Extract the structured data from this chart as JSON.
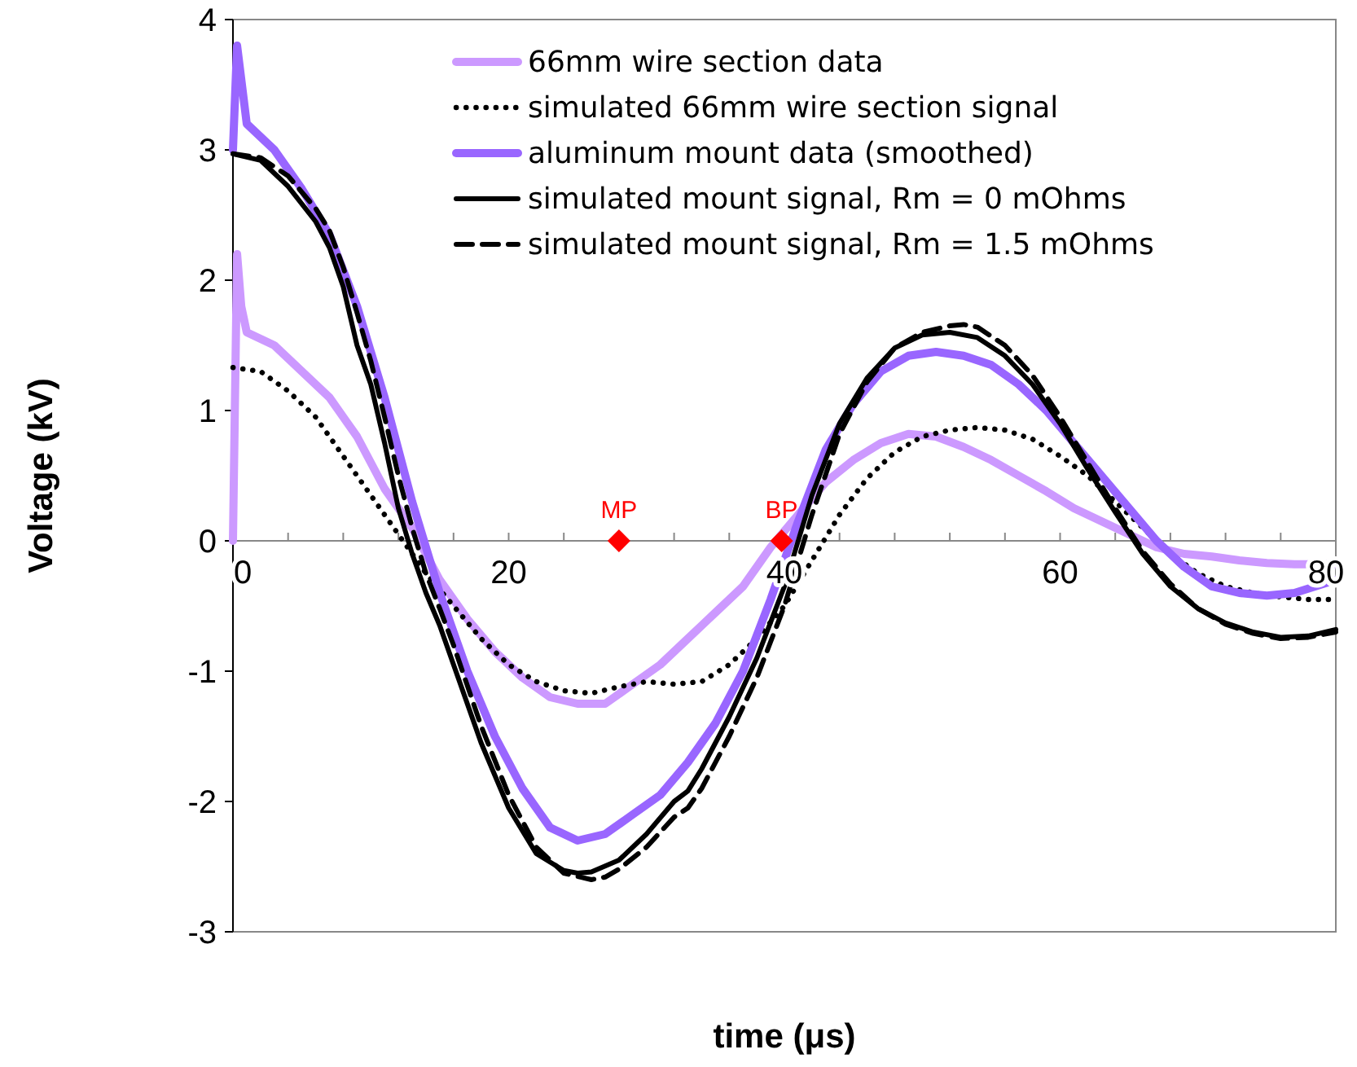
{
  "chart_data": {
    "type": "line",
    "xlabel": "time (μs)",
    "ylabel": "Voltage (kV)",
    "xlim": [
      0,
      80
    ],
    "ylim": [
      -3,
      4
    ],
    "xticks": [
      0,
      {
        "value": 4,
        "label": null
      },
      {
        "value": 8,
        "label": null
      },
      {
        "value": 12,
        "label": null
      },
      {
        "value": 16,
        "label": null
      },
      20,
      {
        "value": 24,
        "label": null
      },
      {
        "value": 28,
        "label": null
      },
      {
        "value": 32,
        "label": null
      },
      {
        "value": 36,
        "label": null
      },
      40,
      {
        "value": 44,
        "label": null
      },
      {
        "value": 48,
        "label": null
      },
      {
        "value": 52,
        "label": null
      },
      {
        "value": 56,
        "label": null
      },
      60,
      {
        "value": 64,
        "label": null
      },
      {
        "value": 68,
        "label": null
      },
      {
        "value": 72,
        "label": null
      },
      {
        "value": 76,
        "label": null
      },
      80
    ],
    "yticks": [
      -3,
      -2,
      -1,
      0,
      1,
      2,
      3,
      4
    ],
    "grid": false,
    "legend": "top right",
    "marker": "none",
    "series": [
      {
        "name": "66mm wire section data",
        "color": "#cc99ff",
        "line_style": "solid",
        "x": [
          0,
          0.3,
          0.6,
          1,
          3,
          5,
          7,
          9,
          11,
          13,
          15,
          17,
          19,
          21,
          23,
          25,
          27,
          29,
          31,
          33,
          35,
          37,
          39,
          41,
          43,
          45,
          47,
          49,
          51,
          53,
          55,
          57,
          59,
          61,
          63,
          65,
          67,
          69,
          71,
          73,
          75,
          77,
          80
        ],
        "values": [
          0,
          2.2,
          1.8,
          1.6,
          1.5,
          1.3,
          1.1,
          0.8,
          0.4,
          0.1,
          -0.3,
          -0.6,
          -0.85,
          -1.05,
          -1.2,
          -1.25,
          -1.25,
          -1.1,
          -0.95,
          -0.75,
          -0.55,
          -0.35,
          -0.05,
          0.2,
          0.45,
          0.62,
          0.75,
          0.82,
          0.8,
          0.72,
          0.62,
          0.5,
          0.38,
          0.25,
          0.15,
          0.05,
          -0.05,
          -0.1,
          -0.12,
          -0.15,
          -0.17,
          -0.18,
          -0.18
        ]
      },
      {
        "name": "simulated 66mm wire section signal",
        "color": "#000000",
        "line_style": "dotted",
        "x": [
          0,
          2,
          4,
          6,
          8,
          10,
          12,
          14,
          16,
          18,
          20,
          22,
          24,
          26,
          28,
          30,
          32,
          34,
          36,
          38,
          40,
          42,
          44,
          46,
          48,
          50,
          52,
          54,
          56,
          58,
          60,
          62,
          64,
          66,
          68,
          70,
          72,
          74,
          76,
          78,
          80
        ],
        "values": [
          1.33,
          1.3,
          1.15,
          0.95,
          0.65,
          0.35,
          0.05,
          -0.25,
          -0.5,
          -0.75,
          -0.95,
          -1.08,
          -1.15,
          -1.17,
          -1.12,
          -1.08,
          -1.1,
          -1.08,
          -0.95,
          -0.75,
          -0.5,
          -0.15,
          0.2,
          0.48,
          0.68,
          0.8,
          0.85,
          0.87,
          0.85,
          0.78,
          0.65,
          0.5,
          0.3,
          0.1,
          -0.1,
          -0.25,
          -0.35,
          -0.4,
          -0.43,
          -0.45,
          -0.45
        ]
      },
      {
        "name": "aluminum mount data (smoothed)",
        "color": "#9966ff",
        "line_style": "solid",
        "x": [
          0,
          0.3,
          1,
          3,
          5,
          7,
          9,
          11,
          13,
          15,
          17,
          19,
          21,
          23,
          25,
          27,
          29,
          31,
          33,
          35,
          37,
          39,
          41,
          43,
          45,
          47,
          49,
          51,
          53,
          55,
          57,
          59,
          61,
          63,
          65,
          67,
          69,
          71,
          73,
          75,
          77,
          80
        ],
        "values": [
          3.0,
          3.8,
          3.2,
          3.0,
          2.7,
          2.35,
          1.8,
          1.1,
          0.3,
          -0.4,
          -1.0,
          -1.5,
          -1.9,
          -2.2,
          -2.3,
          -2.25,
          -2.1,
          -1.95,
          -1.7,
          -1.4,
          -1.0,
          -0.45,
          0.15,
          0.7,
          1.05,
          1.3,
          1.42,
          1.45,
          1.42,
          1.35,
          1.2,
          1.0,
          0.75,
          0.5,
          0.25,
          0.0,
          -0.2,
          -0.35,
          -0.4,
          -0.42,
          -0.4,
          -0.3
        ]
      },
      {
        "name": "simulated mount signal, Rm = 0 mOhms",
        "color": "#000000",
        "line_style": "solid",
        "x": [
          0,
          2,
          4,
          6,
          7,
          8,
          9,
          10,
          11,
          12,
          13,
          14,
          15,
          16,
          18,
          20,
          22,
          24,
          25,
          26,
          28,
          30,
          32,
          33,
          34,
          36,
          38,
          40,
          41,
          42,
          44,
          46,
          48,
          50,
          52,
          54,
          56,
          58,
          60,
          62,
          64,
          66,
          68,
          70,
          72,
          74,
          76,
          78,
          80
        ],
        "values": [
          2.97,
          2.92,
          2.72,
          2.45,
          2.25,
          1.95,
          1.5,
          1.2,
          0.75,
          0.25,
          -0.1,
          -0.4,
          -0.65,
          -0.95,
          -1.55,
          -2.05,
          -2.4,
          -2.53,
          -2.55,
          -2.54,
          -2.45,
          -2.25,
          -2.0,
          -1.92,
          -1.75,
          -1.35,
          -0.9,
          -0.35,
          0,
          0.35,
          0.9,
          1.25,
          1.48,
          1.58,
          1.6,
          1.56,
          1.42,
          1.2,
          0.9,
          0.55,
          0.22,
          -0.1,
          -0.35,
          -0.52,
          -0.63,
          -0.7,
          -0.74,
          -0.73,
          -0.68
        ]
      },
      {
        "name": "simulated mount signal, Rm = 1.5 mOhms",
        "color": "#000000",
        "line_style": "dashed",
        "x": [
          0,
          2,
          4,
          6,
          7,
          8,
          9,
          10,
          11,
          12,
          13,
          14,
          15,
          16,
          18,
          20,
          22,
          24,
          26,
          27,
          28,
          30,
          32,
          33,
          34,
          36,
          38,
          40,
          41,
          42,
          44,
          46,
          48,
          50,
          52,
          53,
          54,
          56,
          58,
          60,
          62,
          64,
          66,
          68,
          70,
          72,
          74,
          76,
          78,
          80
        ],
        "values": [
          2.97,
          2.94,
          2.8,
          2.55,
          2.38,
          2.1,
          1.75,
          1.38,
          0.95,
          0.5,
          0.1,
          -0.25,
          -0.52,
          -0.8,
          -1.42,
          -1.95,
          -2.35,
          -2.55,
          -2.6,
          -2.58,
          -2.52,
          -2.35,
          -2.12,
          -2.05,
          -1.9,
          -1.5,
          -1.05,
          -0.5,
          -0.15,
          0.2,
          0.82,
          1.22,
          1.48,
          1.6,
          1.65,
          1.66,
          1.64,
          1.5,
          1.27,
          0.95,
          0.6,
          0.25,
          -0.08,
          -0.33,
          -0.52,
          -0.64,
          -0.71,
          -0.75,
          -0.74,
          -0.7
        ]
      },
      {
        "type": "scatter",
        "color": "#ff0000",
        "marker": "diamond",
        "x": [
          28,
          39.8
        ],
        "values": [
          0,
          0
        ],
        "value_labels": [
          "MP",
          "BP"
        ]
      }
    ]
  }
}
